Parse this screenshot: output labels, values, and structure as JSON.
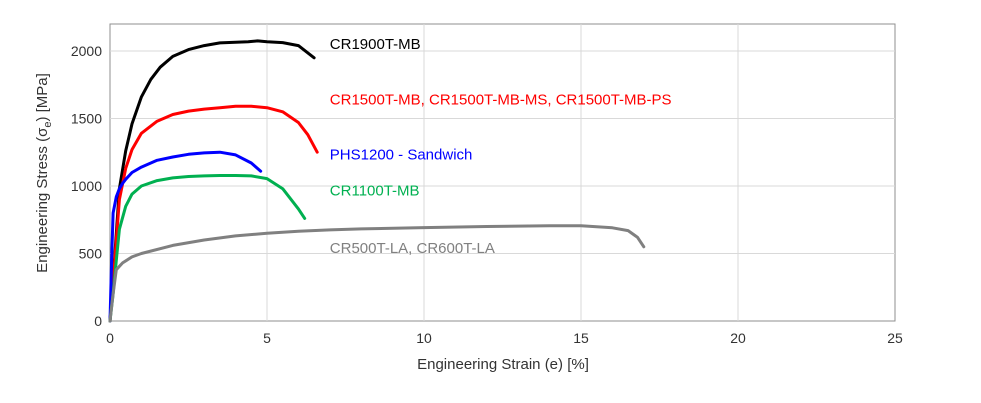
{
  "chart_data": {
    "type": "line",
    "title": "",
    "xlabel": "Engineering Strain (e) [%]",
    "ylabel_main": "Engineering Stress (σ",
    "ylabel_sub": "e",
    "ylabel_end": ") [MPa]",
    "xlim": [
      0,
      25
    ],
    "ylim": [
      0,
      2200
    ],
    "xticks": [
      0,
      5,
      10,
      15,
      20,
      25
    ],
    "yticks": [
      0,
      500,
      1000,
      1500,
      2000
    ],
    "grid": true,
    "legend": "inline labels",
    "series": [
      {
        "name": "CR1900T-MB",
        "color": "#000000",
        "x": [
          0.0,
          0.1,
          0.2,
          0.3,
          0.5,
          0.7,
          1.0,
          1.3,
          1.6,
          2.0,
          2.5,
          3.0,
          3.5,
          4.0,
          4.4,
          4.7,
          5.0,
          5.5,
          6.0,
          6.5
        ],
        "y": [
          0,
          300,
          650,
          980,
          1260,
          1460,
          1660,
          1790,
          1880,
          1960,
          2010,
          2040,
          2060,
          2065,
          2068,
          2075,
          2068,
          2062,
          2040,
          1950
        ]
      },
      {
        "name": "CR1500T-MB, CR1500T-MB-MS, CR1500T-MB-PS",
        "color": "#ff0000",
        "x": [
          0.0,
          0.1,
          0.2,
          0.3,
          0.5,
          0.7,
          1.0,
          1.5,
          2.0,
          2.5,
          3.0,
          3.5,
          4.0,
          4.5,
          5.0,
          5.5,
          6.0,
          6.3,
          6.6
        ],
        "y": [
          0,
          280,
          600,
          900,
          1130,
          1270,
          1390,
          1480,
          1530,
          1555,
          1570,
          1580,
          1590,
          1590,
          1580,
          1550,
          1470,
          1380,
          1250
        ]
      },
      {
        "name": "PHS1200 - Sandwich",
        "color": "#0000ff",
        "x": [
          0.0,
          0.05,
          0.1,
          0.2,
          0.3,
          0.4,
          0.5,
          0.7,
          1.0,
          1.5,
          2.0,
          2.5,
          3.0,
          3.5,
          4.0,
          4.5,
          4.8
        ],
        "y": [
          0,
          450,
          800,
          920,
          980,
          1020,
          1050,
          1100,
          1140,
          1190,
          1215,
          1235,
          1245,
          1250,
          1230,
          1170,
          1110
        ]
      },
      {
        "name": "CR1100T-MB",
        "color": "#00b050",
        "x": [
          0.0,
          0.1,
          0.2,
          0.3,
          0.5,
          0.7,
          1.0,
          1.5,
          2.0,
          2.5,
          3.0,
          3.5,
          4.0,
          4.5,
          5.0,
          5.5,
          6.0,
          6.2
        ],
        "y": [
          0,
          200,
          450,
          680,
          850,
          940,
          1000,
          1040,
          1060,
          1070,
          1075,
          1078,
          1078,
          1075,
          1055,
          980,
          830,
          760
        ]
      },
      {
        "name": "CR500T-LA, CR600T-LA",
        "color": "#808080",
        "x": [
          0.0,
          0.1,
          0.2,
          0.4,
          0.7,
          1.0,
          2.0,
          3.0,
          4.0,
          5.0,
          6.0,
          7.0,
          8.0,
          10.0,
          12.0,
          14.0,
          15.0,
          16.0,
          16.5,
          16.8,
          17.0
        ],
        "y": [
          0,
          200,
          380,
          430,
          475,
          500,
          560,
          600,
          630,
          650,
          665,
          675,
          682,
          692,
          700,
          705,
          705,
          690,
          670,
          620,
          550
        ]
      }
    ],
    "labels": [
      {
        "text": "CR1900T-MB",
        "x": 7.0,
        "y": 2015,
        "color": "#000000"
      },
      {
        "text": "CR1500T-MB, CR1500T-MB-MS, CR1500T-MB-PS",
        "x": 7.0,
        "y": 1605,
        "color": "#ff0000"
      },
      {
        "text": "PHS1200 - Sandwich",
        "x": 7.0,
        "y": 1198,
        "color": "#0000ff"
      },
      {
        "text": "CR1100T-MB",
        "x": 7.0,
        "y": 930,
        "color": "#00b050"
      },
      {
        "text": "CR500T-LA, CR600T-LA",
        "x": 7.0,
        "y": 505,
        "color": "#808080"
      }
    ]
  }
}
